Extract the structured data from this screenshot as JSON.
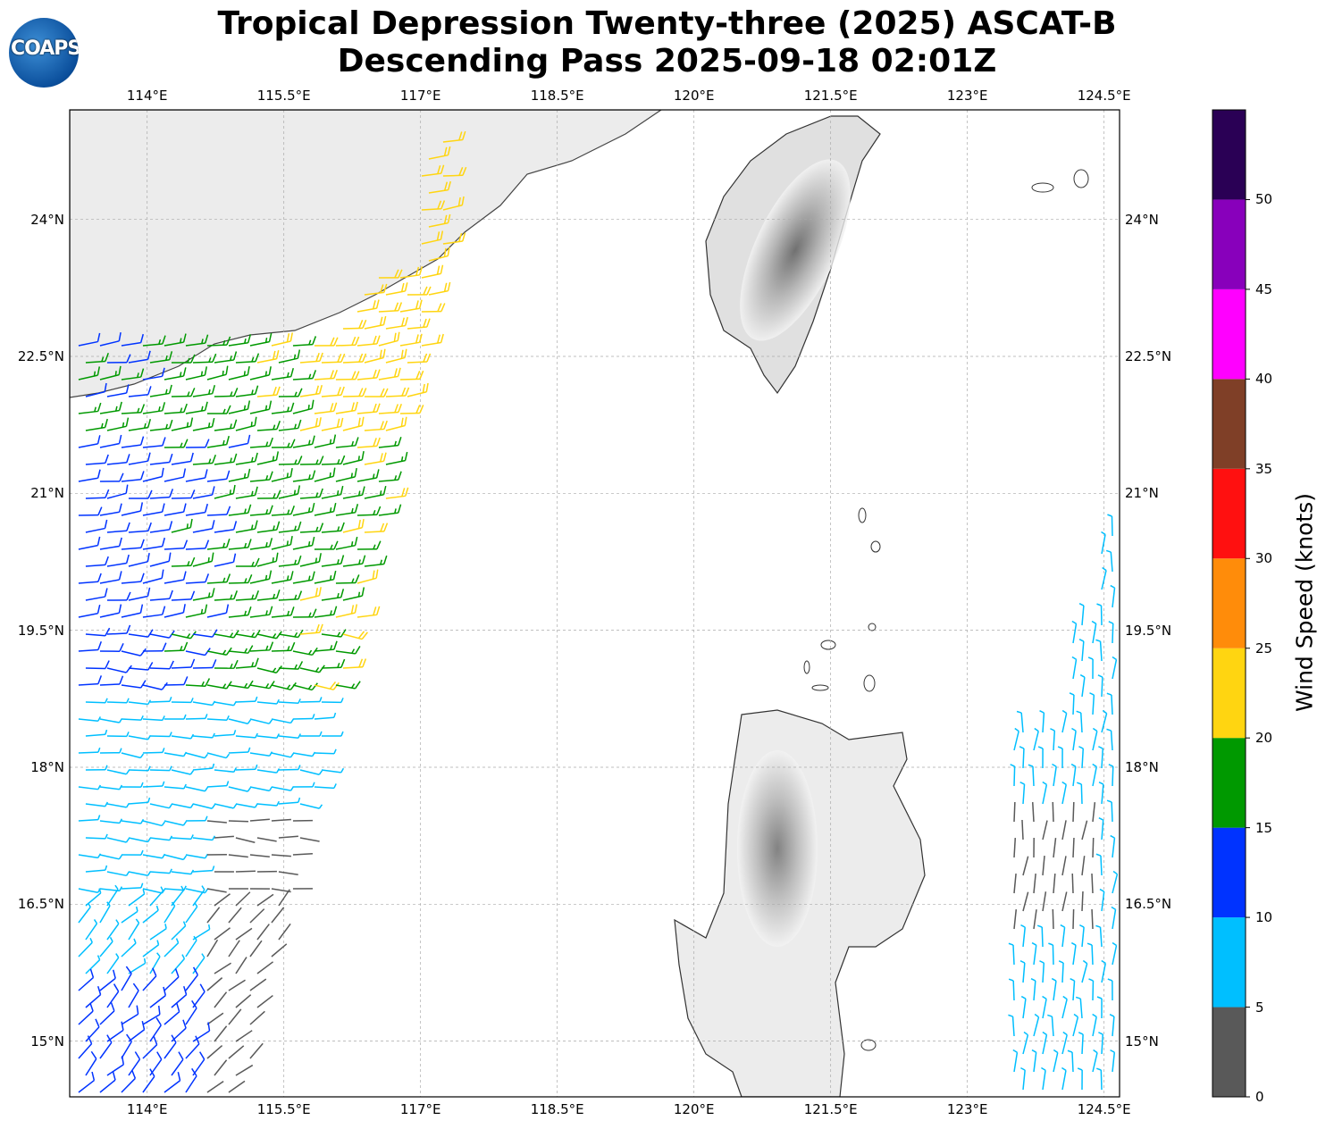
{
  "title": {
    "line1": "Tropical Depression Twenty-three (2025) ASCAT-B",
    "line2": "Descending Pass 2025-09-18 02:01Z"
  },
  "logo": {
    "text": "COAPS"
  },
  "map": {
    "lon_labels": [
      "114°E",
      "115.5°E",
      "117°E",
      "118.5°E",
      "120°E",
      "121.5°E",
      "123°E",
      "124.5°E"
    ],
    "lon_values": [
      114,
      115.5,
      117,
      118.5,
      120,
      121.5,
      123,
      124.5
    ],
    "lat_labels": [
      "24°N",
      "22.5°N",
      "21°N",
      "19.5°N",
      "18°N",
      "16.5°N",
      "15°N"
    ],
    "lat_values": [
      24,
      22.5,
      21,
      19.5,
      18,
      16.5,
      15
    ],
    "extent": {
      "lon": [
        113.15,
        124.67
      ],
      "lat": [
        14.39,
        25.2
      ]
    }
  },
  "colorbar": {
    "label": "Wind Speed (knots)",
    "ticks": [
      "0",
      "5",
      "10",
      "15",
      "20",
      "25",
      "30",
      "35",
      "40",
      "45",
      "50"
    ],
    "bins": [
      0,
      5,
      10,
      15,
      20,
      25,
      30,
      35,
      40,
      45,
      50,
      55
    ],
    "colors": [
      "#595959",
      "#00bfff",
      "#0033ff",
      "#009900",
      "#ffd511",
      "#ff8c0a",
      "#ff1010",
      "#7f3f27",
      "#ff00ff",
      "#8800bb",
      "#2a0055"
    ]
  }
}
